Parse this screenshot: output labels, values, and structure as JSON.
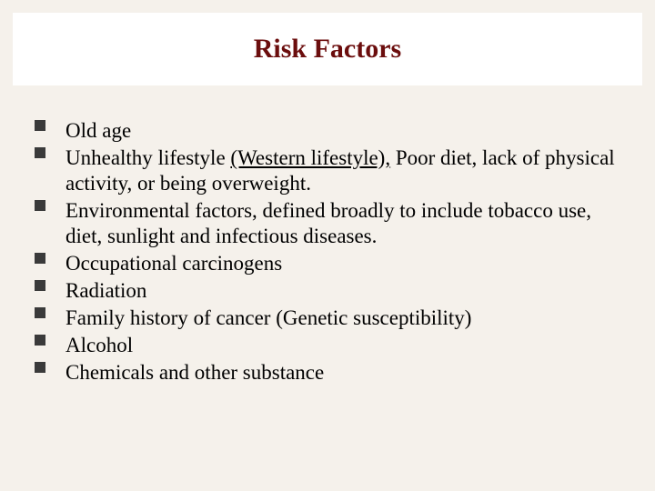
{
  "slide": {
    "title": "Risk Factors",
    "background_color": "#f5f1eb",
    "title_band_bg": "#ffffff",
    "title_color": "#6b0d0d",
    "title_fontsize": 30,
    "body_fontsize": 23,
    "body_color": "#000000",
    "bullet_color": "#3a3a3a",
    "bullet_shape": "square",
    "items": [
      {
        "lead": "Old",
        "rest": " age"
      },
      {
        "lead": "Unhealthy",
        "rest_a": " lifestyle ",
        "underline": "(Western lifestyle),",
        "rest_b": " Poor diet, lack of physical activity, or being overweight."
      },
      {
        "lead": "Environmental",
        "rest": " factors, defined broadly to include tobacco use, diet, sunlight and infectious diseases."
      },
      {
        "lead": "Occupational",
        "rest": " carcinogens"
      },
      {
        "lead": "Radiation",
        "rest": ""
      },
      {
        "lead": "Family history",
        "rest": " of cancer (Genetic susceptibility)"
      },
      {
        "lead": "Alcohol",
        "rest": ""
      },
      {
        "lead": "Chemicals",
        "rest": " and other substance"
      }
    ]
  }
}
